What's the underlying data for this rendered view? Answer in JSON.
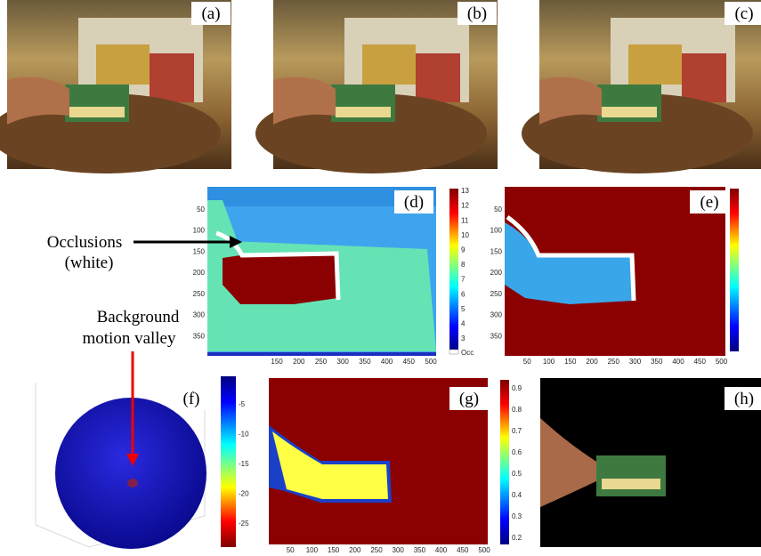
{
  "panels": {
    "labels": [
      "(a)",
      "(b)",
      "(c)",
      "(d)",
      "(e)",
      "(f)",
      "(g)",
      "(h)"
    ]
  },
  "annotations": {
    "occlusions": [
      "Occlusions",
      "(white)"
    ],
    "valley": [
      "Background",
      "motion valley"
    ]
  },
  "panel_d": {
    "xticks": [
      150,
      200,
      250,
      300,
      350,
      400,
      450,
      500
    ],
    "yticks": [
      50,
      100,
      150,
      200,
      250,
      300,
      350
    ],
    "colorbar": [
      13,
      12,
      11,
      10,
      9,
      8,
      7,
      6,
      5,
      4,
      3
    ],
    "colorbar_end": "Occ"
  },
  "panel_e": {
    "xticks": [
      50,
      100,
      150,
      200,
      250,
      300,
      350,
      400,
      450,
      500
    ],
    "yticks": [
      50,
      100,
      150,
      200,
      250,
      300,
      350
    ]
  },
  "panel_f": {
    "colorbar": [
      -5,
      -10,
      -15,
      -20,
      -25
    ]
  },
  "panel_g": {
    "xticks": [
      50,
      100,
      150,
      200,
      250,
      300,
      350,
      400,
      450,
      500
    ],
    "colorbar": [
      0.9,
      0.8,
      0.7,
      0.6,
      0.5,
      0.4,
      0.3,
      0.2
    ]
  }
}
